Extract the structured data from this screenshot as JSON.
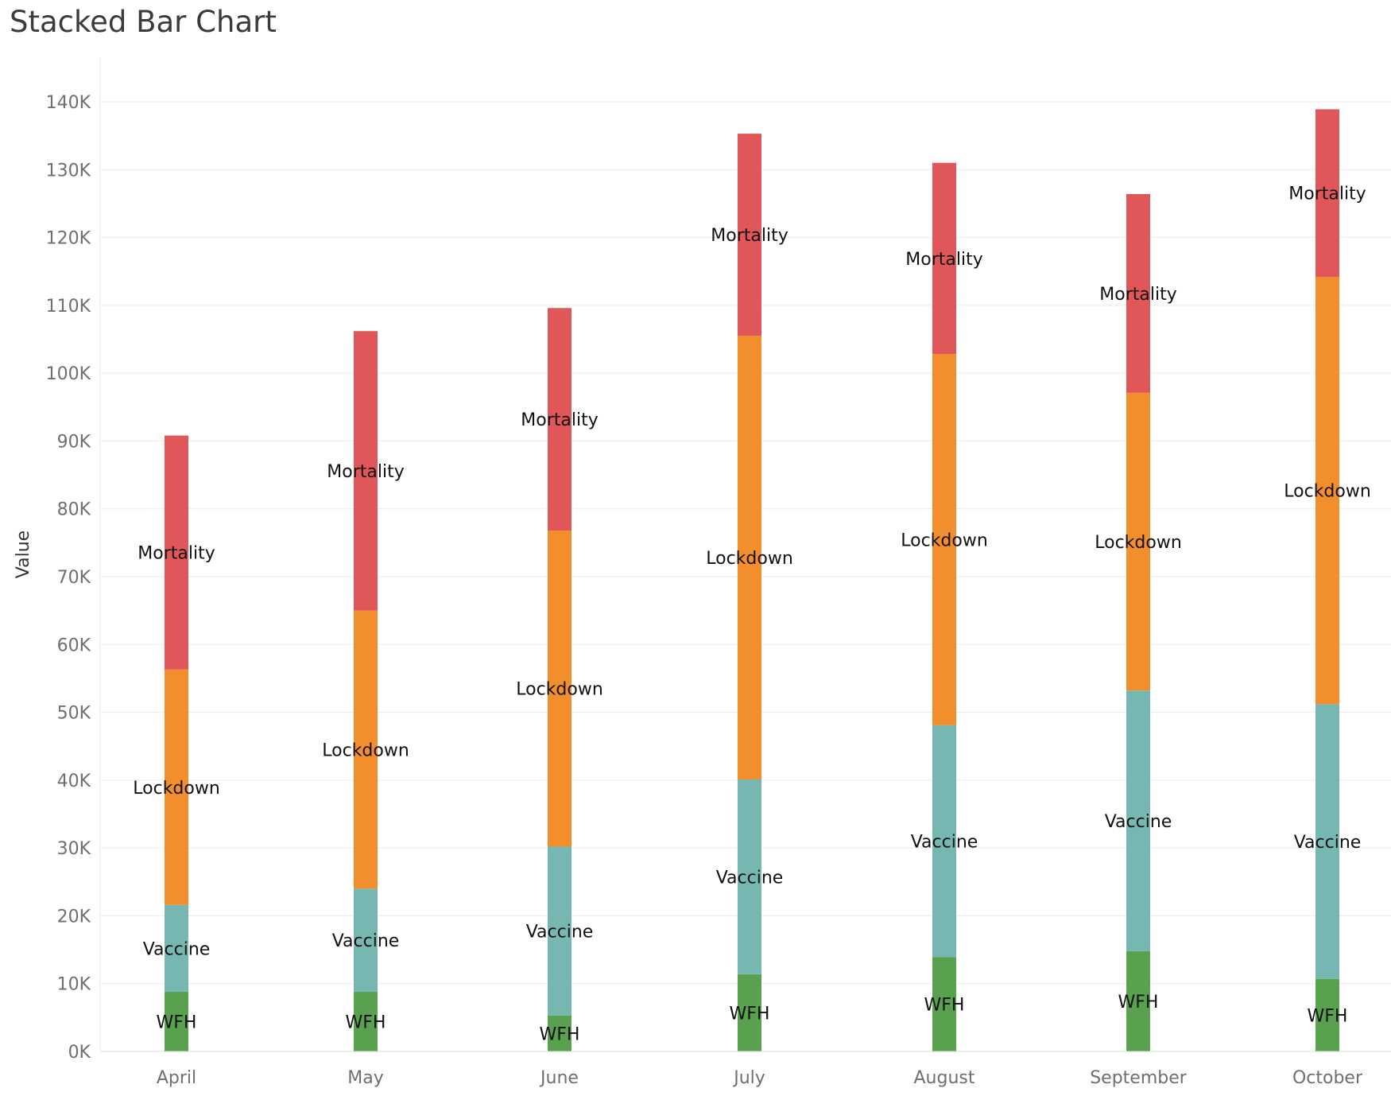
{
  "chart_data": {
    "type": "bar",
    "stacked": true,
    "title": "Stacked Bar Chart",
    "xlabel": "",
    "ylabel": "Value",
    "ylim": [
      0,
      140000
    ],
    "ytick_values": [
      0,
      10000,
      20000,
      30000,
      40000,
      50000,
      60000,
      70000,
      80000,
      90000,
      100000,
      110000,
      120000,
      130000,
      140000
    ],
    "yticks": [
      "0K",
      "10K",
      "20K",
      "30K",
      "40K",
      "50K",
      "60K",
      "70K",
      "80K",
      "90K",
      "100K",
      "110K",
      "120K",
      "130K",
      "140K"
    ],
    "grid": true,
    "legend": "none",
    "categories": [
      "April",
      "May",
      "June",
      "July",
      "August",
      "September",
      "October"
    ],
    "series": [
      {
        "name": "WFH",
        "color": "#59a14f",
        "values": [
          8800,
          8800,
          5300,
          11400,
          13900,
          14800,
          10700
        ]
      },
      {
        "name": "Vaccine",
        "color": "#76b7b2",
        "values": [
          12800,
          15200,
          24900,
          28700,
          34200,
          38400,
          40500
        ]
      },
      {
        "name": "Lockdown",
        "color": "#f28e2b",
        "values": [
          34700,
          41000,
          46600,
          65400,
          54700,
          43900,
          63000
        ]
      },
      {
        "name": "Mortality",
        "color": "#e15759",
        "values": [
          34500,
          41200,
          32800,
          29800,
          28200,
          29300,
          24700
        ]
      }
    ]
  }
}
